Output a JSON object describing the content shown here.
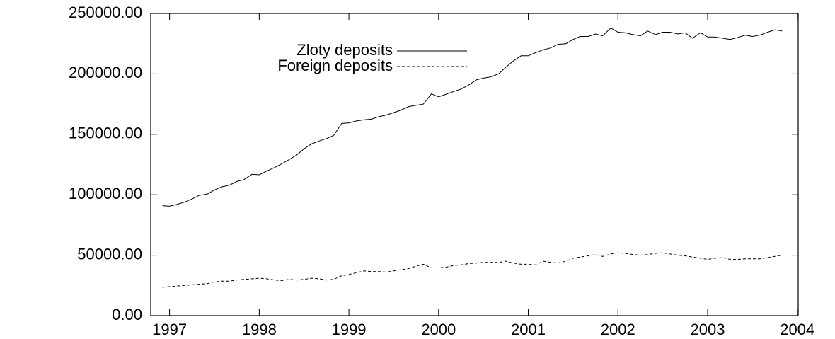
{
  "chart_data": {
    "type": "line",
    "x": [
      1996.92,
      1997.0,
      1997.08,
      1997.17,
      1997.25,
      1997.33,
      1997.42,
      1997.5,
      1997.58,
      1997.67,
      1997.75,
      1997.83,
      1997.92,
      1998.0,
      1998.08,
      1998.17,
      1998.25,
      1998.33,
      1998.42,
      1998.5,
      1998.58,
      1998.67,
      1998.75,
      1998.83,
      1998.92,
      1999.0,
      1999.08,
      1999.17,
      1999.25,
      1999.33,
      1999.42,
      1999.5,
      1999.58,
      1999.67,
      1999.75,
      1999.83,
      1999.92,
      2000.0,
      2000.08,
      2000.17,
      2000.25,
      2000.33,
      2000.42,
      2000.5,
      2000.58,
      2000.67,
      2000.75,
      2000.83,
      2000.92,
      2001.0,
      2001.08,
      2001.17,
      2001.25,
      2001.33,
      2001.42,
      2001.5,
      2001.58,
      2001.67,
      2001.75,
      2001.83,
      2001.92,
      2002.0,
      2002.08,
      2002.17,
      2002.25,
      2002.33,
      2002.42,
      2002.5,
      2002.58,
      2002.67,
      2002.75,
      2002.83,
      2002.92,
      2003.0,
      2003.08,
      2003.17,
      2003.25,
      2003.33,
      2003.42,
      2003.5,
      2003.58,
      2003.67,
      2003.75,
      2003.83
    ],
    "series": [
      {
        "name": "Zloty deposits",
        "color": "#000000",
        "style": "solid",
        "values": [
          91000,
          90500,
          92000,
          94000,
          96500,
          99500,
          100500,
          104000,
          106500,
          108000,
          111000,
          112500,
          117000,
          116500,
          119500,
          122500,
          125500,
          129000,
          133000,
          138000,
          142000,
          144500,
          146500,
          149000,
          159000,
          159500,
          161000,
          162000,
          162500,
          164500,
          166000,
          168000,
          170000,
          173000,
          174000,
          175000,
          183500,
          181000,
          183000,
          185500,
          187500,
          190500,
          195000,
          196500,
          197500,
          200000,
          205500,
          210500,
          215000,
          215000,
          217500,
          220000,
          221500,
          224500,
          225000,
          228500,
          231000,
          231000,
          233000,
          231500,
          238000,
          234500,
          234000,
          232500,
          231500,
          235500,
          232500,
          234500,
          234500,
          233000,
          234000,
          229500,
          234000,
          230500,
          230500,
          229500,
          228500,
          230000,
          232000,
          231000,
          232000,
          234500,
          236500,
          235500
        ]
      },
      {
        "name": "Foreign deposits",
        "color": "#000000",
        "style": "dashed",
        "values": [
          23500,
          24000,
          24500,
          25000,
          25500,
          26000,
          26500,
          28000,
          28500,
          28500,
          29500,
          30000,
          30500,
          31000,
          30500,
          29500,
          29000,
          30000,
          29500,
          30000,
          31000,
          30500,
          29500,
          30000,
          33000,
          34000,
          35500,
          37000,
          36500,
          36500,
          36000,
          37000,
          38000,
          39000,
          41000,
          42500,
          39500,
          39500,
          40000,
          41500,
          42000,
          43000,
          43500,
          44000,
          44000,
          44000,
          45000,
          43500,
          42500,
          42500,
          42000,
          45000,
          44000,
          43500,
          45000,
          47500,
          48500,
          49500,
          50500,
          49000,
          51000,
          52000,
          51500,
          50500,
          50000,
          50500,
          51500,
          52000,
          51000,
          50000,
          49500,
          48500,
          47500,
          46500,
          47500,
          48000,
          46500,
          46500,
          47000,
          47000,
          47000,
          48000,
          49000,
          50000
        ]
      }
    ],
    "xlim": [
      1996.79,
      2004.01
    ],
    "xticks": [
      1997,
      1998,
      1999,
      2000,
      2001,
      2002,
      2003,
      2004
    ],
    "ylim": [
      0,
      250000
    ],
    "yticks": [
      {
        "value": 0,
        "label": "0.00"
      },
      {
        "value": 50000,
        "label": "50000.00"
      },
      {
        "value": 100000,
        "label": "100000.00"
      },
      {
        "value": 150000,
        "label": "150000.00"
      },
      {
        "value": 200000,
        "label": "200000.00"
      },
      {
        "value": 250000,
        "label": "250000.00"
      }
    ],
    "legend": "upper left",
    "grid": false
  }
}
